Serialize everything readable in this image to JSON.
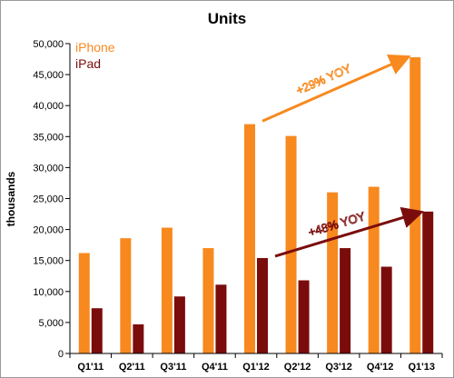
{
  "chart_data": {
    "type": "bar",
    "title": "Units",
    "ylabel": "thousands",
    "xlabel": "",
    "ylim": [
      0,
      50000
    ],
    "yticks": [
      0,
      5000,
      10000,
      15000,
      20000,
      25000,
      30000,
      35000,
      40000,
      45000,
      50000
    ],
    "ytick_labels": [
      "0",
      "5,000",
      "10,000",
      "15,000",
      "20,000",
      "25,000",
      "30,000",
      "35,000",
      "40,000",
      "45,000",
      "50,000"
    ],
    "categories": [
      "Q1'11",
      "Q2'11",
      "Q3'11",
      "Q4'11",
      "Q1'12",
      "Q2'12",
      "Q3'12",
      "Q4'12",
      "Q1'13"
    ],
    "series": [
      {
        "name": "iPhone",
        "color": "#f7891f",
        "values": [
          16200,
          18600,
          20300,
          17000,
          37000,
          35100,
          26000,
          26900,
          47800
        ]
      },
      {
        "name": "iPad",
        "color": "#7b0c0c",
        "values": [
          7300,
          4700,
          9200,
          11100,
          15400,
          11800,
          17000,
          14000,
          22900
        ]
      }
    ],
    "legend_position": "top-left",
    "grid": false,
    "annotations": [
      {
        "text": "+29% YOY",
        "series": "iPhone",
        "color": "#f7891f",
        "from_category": "Q1'12",
        "to_category": "Q1'13",
        "from_value": 37500,
        "to_value": 47700
      },
      {
        "text": "+48% YOY",
        "series": "iPad",
        "color": "#7b0c0c",
        "from_category": "Q1'12",
        "to_category": "Q1'13",
        "from_value": 15700,
        "to_value": 22700
      }
    ]
  }
}
